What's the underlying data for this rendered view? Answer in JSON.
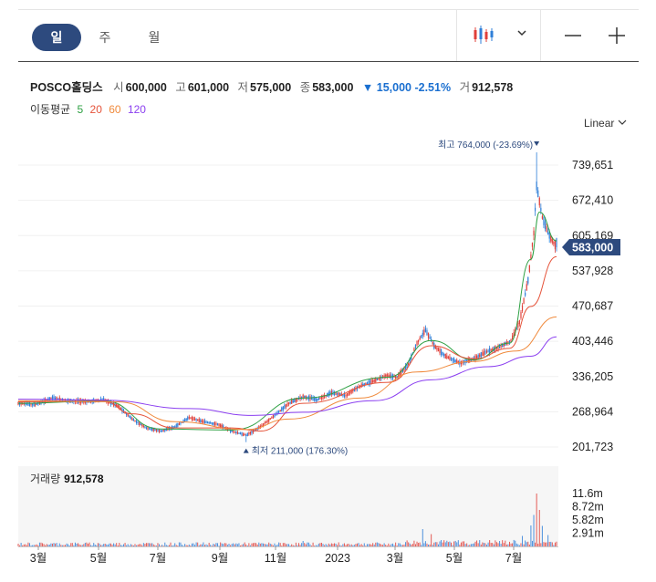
{
  "toolbar": {
    "tabs": [
      {
        "label": "일",
        "active": true
      },
      {
        "label": "주",
        "active": false
      },
      {
        "label": "월",
        "active": false
      }
    ],
    "chart_type_icon": "candlestick-icon",
    "dropdown_icon": "chevron-down-icon",
    "zoom_out_icon": "minus-icon",
    "zoom_in_icon": "plus-icon"
  },
  "info": {
    "name": "POSCO홀딩스",
    "open_label": "시",
    "open": "600,000",
    "high_label": "고",
    "high": "601,000",
    "low_label": "저",
    "low": "575,000",
    "close_label": "종",
    "close": "583,000",
    "change_arrow": "▼",
    "change": "15,000",
    "change_pct": "-2.51%",
    "volume_label": "거",
    "volume": "912,578"
  },
  "ma_legend": {
    "label": "이동평균",
    "periods": [
      {
        "label": "5",
        "color": "#2ea043"
      },
      {
        "label": "20",
        "color": "#e5533a"
      },
      {
        "label": "60",
        "color": "#f08a3c"
      },
      {
        "label": "120",
        "color": "#8b3ff0"
      }
    ]
  },
  "scale_label": "Linear",
  "volume_panel": {
    "label": "거래량",
    "value": "912,578"
  },
  "colors": {
    "up": "#e0403a",
    "down": "#2f7fd8",
    "accent": "#2d4a7e"
  },
  "chart_data": {
    "type": "candlestick",
    "y_ticks": [
      "739,651",
      "672,410",
      "605,169",
      "537,928",
      "470,687",
      "403,446",
      "336,205",
      "268,964",
      "201,723"
    ],
    "y_tick_values": [
      739651,
      672410,
      605169,
      537928,
      470687,
      403446,
      336205,
      268964,
      201723
    ],
    "x_ticks": [
      "3월",
      "5월",
      "7월",
      "9월",
      "11월",
      "2023",
      "3월",
      "5월",
      "7월"
    ],
    "current_price_label": "583,000",
    "max_label": "최고 764,000 (-23.69%)",
    "min_label": "최저 211,000 (176.30%)",
    "max_value": 764000,
    "min_value": 211000,
    "last_close": 583000,
    "price_path": [
      [
        0,
        285000
      ],
      [
        12,
        283000
      ],
      [
        24,
        295000
      ],
      [
        36,
        290000
      ],
      [
        48,
        288000
      ],
      [
        60,
        292000
      ],
      [
        70,
        280000
      ],
      [
        80,
        255000
      ],
      [
        90,
        238000
      ],
      [
        100,
        232000
      ],
      [
        110,
        240000
      ],
      [
        120,
        258000
      ],
      [
        130,
        250000
      ],
      [
        140,
        245000
      ],
      [
        150,
        232000
      ],
      [
        160,
        224000
      ],
      [
        170,
        240000
      ],
      [
        180,
        262000
      ],
      [
        190,
        285000
      ],
      [
        200,
        298000
      ],
      [
        210,
        292000
      ],
      [
        220,
        305000
      ],
      [
        230,
        300000
      ],
      [
        240,
        318000
      ],
      [
        250,
        328000
      ],
      [
        258,
        338000
      ],
      [
        266,
        335000
      ],
      [
        274,
        360000
      ],
      [
        280,
        400000
      ],
      [
        286,
        425000
      ],
      [
        292,
        395000
      ],
      [
        300,
        375000
      ],
      [
        310,
        362000
      ],
      [
        320,
        370000
      ],
      [
        330,
        385000
      ],
      [
        340,
        395000
      ],
      [
        346,
        405000
      ],
      [
        352,
        440000
      ],
      [
        358,
        520000
      ],
      [
        362,
        610000
      ],
      [
        364,
        700000
      ],
      [
        368,
        640000
      ],
      [
        372,
        610000
      ],
      [
        375,
        595000
      ],
      [
        378,
        583000
      ]
    ],
    "ma_lines": [
      {
        "period": "5",
        "color": "#2ea043",
        "points": [
          [
            0,
            285000
          ],
          [
            60,
            290000
          ],
          [
            100,
            236000
          ],
          [
            150,
            234000
          ],
          [
            200,
            295000
          ],
          [
            260,
            335000
          ],
          [
            290,
            405000
          ],
          [
            320,
            368000
          ],
          [
            345,
            400000
          ],
          [
            360,
            560000
          ],
          [
            366,
            650000
          ],
          [
            378,
            595000
          ]
        ]
      },
      {
        "period": "20",
        "color": "#e5533a",
        "points": [
          [
            0,
            288000
          ],
          [
            60,
            289000
          ],
          [
            80,
            265000
          ],
          [
            110,
            238000
          ],
          [
            150,
            238000
          ],
          [
            170,
            232000
          ],
          [
            200,
            285000
          ],
          [
            260,
            325000
          ],
          [
            290,
            395000
          ],
          [
            320,
            370000
          ],
          [
            345,
            390000
          ],
          [
            360,
            470000
          ],
          [
            378,
            565000
          ]
        ]
      },
      {
        "period": "60",
        "color": "#f08a3c",
        "points": [
          [
            0,
            290000
          ],
          [
            70,
            288000
          ],
          [
            110,
            250000
          ],
          [
            160,
            235000
          ],
          [
            190,
            255000
          ],
          [
            240,
            295000
          ],
          [
            280,
            345000
          ],
          [
            320,
            365000
          ],
          [
            350,
            385000
          ],
          [
            378,
            450000
          ]
        ]
      },
      {
        "period": "120",
        "color": "#8b3ff0",
        "points": [
          [
            0,
            293000
          ],
          [
            60,
            291000
          ],
          [
            120,
            275000
          ],
          [
            165,
            262000
          ],
          [
            200,
            268000
          ],
          [
            250,
            290000
          ],
          [
            290,
            330000
          ],
          [
            330,
            355000
          ],
          [
            360,
            375000
          ],
          [
            378,
            412000
          ]
        ]
      }
    ],
    "volume_ticks": [
      "11.6m",
      "8.72m",
      "5.82m",
      "2.91m"
    ],
    "volume_tick_values": [
      11600000,
      8720000,
      5820000,
      2910000
    ],
    "volume_spikes": [
      {
        "t": 200,
        "v": 1200000
      },
      {
        "t": 284,
        "v": 3800000
      },
      {
        "t": 290,
        "v": 2700000
      },
      {
        "t": 354,
        "v": 2300000
      },
      {
        "t": 360,
        "v": 4600000
      },
      {
        "t": 362,
        "v": 6900000
      },
      {
        "t": 364,
        "v": 11600000
      },
      {
        "t": 366,
        "v": 8000000
      },
      {
        "t": 368,
        "v": 4500000
      },
      {
        "t": 372,
        "v": 2500000
      }
    ],
    "volume_base_range": [
      150000,
      900000
    ]
  }
}
